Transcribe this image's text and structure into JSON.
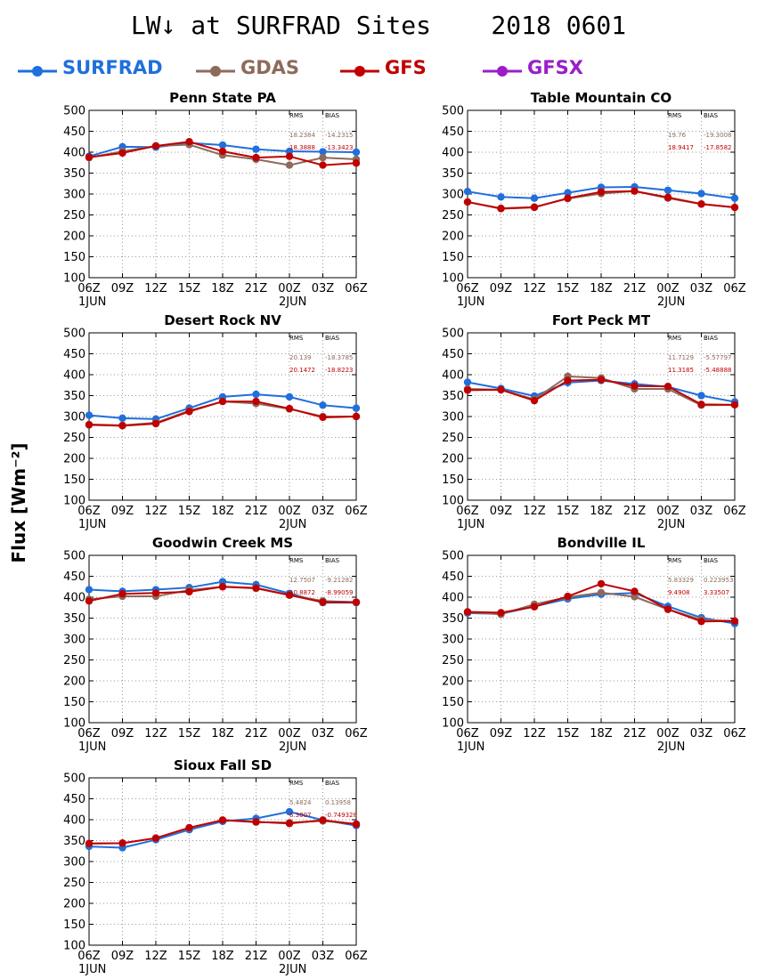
{
  "title": "LW↓ at SURFRAD Sites    2018 0601",
  "ylabel": "Flux [Wm⁻²]",
  "legend": [
    {
      "name": "SURFRAD",
      "color": "#1f6fdc"
    },
    {
      "name": "GDAS",
      "color": "#8c6a5c"
    },
    {
      "name": "GFS",
      "color": "#c00000"
    },
    {
      "name": "GFSX",
      "color": "#9a1ec8"
    }
  ],
  "stats_header": {
    "rms": "RMS",
    "bias": "BIAS"
  },
  "chart_data": [
    {
      "type": "line",
      "title": "Penn State PA",
      "x": [
        "06Z",
        "09Z",
        "12Z",
        "15Z",
        "18Z",
        "21Z",
        "00Z",
        "03Z",
        "06Z"
      ],
      "date_labels": [
        "1JUN",
        "2JUN"
      ],
      "ylim": [
        100,
        500
      ],
      "yticks": [
        100,
        150,
        200,
        250,
        300,
        350,
        400,
        450,
        500
      ],
      "grid": true,
      "series": [
        {
          "name": "SURFRAD",
          "color": "#1f6fdc",
          "values": [
            390,
            413,
            412,
            422,
            417,
            407,
            402,
            401,
            400
          ]
        },
        {
          "name": "GDAS",
          "color": "#8c6a5c",
          "values": [
            387,
            402,
            415,
            418,
            393,
            383,
            369,
            387,
            383
          ]
        },
        {
          "name": "GFS",
          "color": "#c00000",
          "values": [
            388,
            398,
            415,
            425,
            402,
            387,
            390,
            369,
            374
          ]
        }
      ],
      "stats": [
        {
          "model": "GDAS",
          "color": "#8c6a5c",
          "rms": "18.2384",
          "bias": "-14.2315"
        },
        {
          "model": "GFS",
          "color": "#c00000",
          "rms": "18.3888",
          "bias": "-13.3423"
        }
      ]
    },
    {
      "type": "line",
      "title": "Table Mountain CO",
      "x": [
        "06Z",
        "09Z",
        "12Z",
        "15Z",
        "18Z",
        "21Z",
        "00Z",
        "03Z",
        "06Z"
      ],
      "date_labels": [
        "1JUN",
        "2JUN"
      ],
      "ylim": [
        100,
        500
      ],
      "yticks": [
        100,
        150,
        200,
        250,
        300,
        350,
        400,
        450,
        500
      ],
      "grid": true,
      "series": [
        {
          "name": "SURFRAD",
          "color": "#1f6fdc",
          "values": [
            306,
            293,
            290,
            303,
            316,
            317,
            309,
            301,
            290
          ]
        },
        {
          "name": "GDAS",
          "color": "#8c6a5c",
          "values": [
            281,
            266,
            269,
            289,
            301,
            307,
            290,
            276,
            268
          ]
        },
        {
          "name": "GFS",
          "color": "#c00000",
          "values": [
            281,
            265,
            268,
            290,
            305,
            307,
            292,
            276,
            268
          ]
        }
      ],
      "stats": [
        {
          "model": "GDAS",
          "color": "#8c6a5c",
          "rms": "19.76",
          "bias": "-19.3008"
        },
        {
          "model": "GFS",
          "color": "#c00000",
          "rms": "18.9417",
          "bias": "-17.8582"
        }
      ]
    },
    {
      "type": "line",
      "title": "Desert Rock NV",
      "x": [
        "06Z",
        "09Z",
        "12Z",
        "15Z",
        "18Z",
        "21Z",
        "00Z",
        "03Z",
        "06Z"
      ],
      "date_labels": [
        "1JUN",
        "2JUN"
      ],
      "ylim": [
        100,
        500
      ],
      "yticks": [
        100,
        150,
        200,
        250,
        300,
        350,
        400,
        450,
        500
      ],
      "grid": true,
      "series": [
        {
          "name": "SURFRAD",
          "color": "#1f6fdc",
          "values": [
            303,
            296,
            294,
            320,
            347,
            353,
            347,
            327,
            320
          ]
        },
        {
          "name": "GDAS",
          "color": "#8c6a5c",
          "values": [
            281,
            279,
            285,
            314,
            336,
            331,
            318,
            300,
            300
          ]
        },
        {
          "name": "GFS",
          "color": "#c00000",
          "values": [
            280,
            278,
            283,
            312,
            336,
            336,
            319,
            298,
            300
          ]
        }
      ],
      "stats": [
        {
          "model": "GDAS",
          "color": "#8c6a5c",
          "rms": "20.139",
          "bias": "-18.3785"
        },
        {
          "model": "GFS",
          "color": "#c00000",
          "rms": "20.1472",
          "bias": "-18.8223"
        }
      ]
    },
    {
      "type": "line",
      "title": "Fort Peck MT",
      "x": [
        "06Z",
        "09Z",
        "12Z",
        "15Z",
        "18Z",
        "21Z",
        "00Z",
        "03Z",
        "06Z"
      ],
      "date_labels": [
        "1JUN",
        "2JUN"
      ],
      "ylim": [
        100,
        500
      ],
      "yticks": [
        100,
        150,
        200,
        250,
        300,
        350,
        400,
        450,
        500
      ],
      "grid": true,
      "series": [
        {
          "name": "SURFRAD",
          "color": "#1f6fdc",
          "values": [
            382,
            367,
            349,
            381,
            386,
            378,
            371,
            350,
            335
          ]
        },
        {
          "name": "GDAS",
          "color": "#8c6a5c",
          "values": [
            366,
            364,
            341,
            396,
            392,
            366,
            366,
            327,
            328
          ]
        },
        {
          "name": "GFS",
          "color": "#c00000",
          "values": [
            363,
            364,
            338,
            386,
            388,
            373,
            372,
            329,
            328
          ]
        }
      ],
      "stats": [
        {
          "model": "GDAS",
          "color": "#8c6a5c",
          "rms": "11.7129",
          "bias": "-5.57797"
        },
        {
          "model": "GFS",
          "color": "#c00000",
          "rms": "11.3185",
          "bias": "-5.48888"
        }
      ]
    },
    {
      "type": "line",
      "title": "Goodwin Creek MS",
      "x": [
        "06Z",
        "09Z",
        "12Z",
        "15Z",
        "18Z",
        "21Z",
        "00Z",
        "03Z",
        "06Z"
      ],
      "date_labels": [
        "1JUN",
        "2JUN"
      ],
      "ylim": [
        100,
        500
      ],
      "yticks": [
        100,
        150,
        200,
        250,
        300,
        350,
        400,
        450,
        500
      ],
      "grid": true,
      "series": [
        {
          "name": "SURFRAD",
          "color": "#1f6fdc",
          "values": [
            418,
            414,
            418,
            423,
            437,
            430,
            409,
            387,
            387
          ]
        },
        {
          "name": "GDAS",
          "color": "#8c6a5c",
          "values": [
            395,
            402,
            402,
            417,
            425,
            421,
            405,
            391,
            388
          ]
        },
        {
          "name": "GFS",
          "color": "#c00000",
          "values": [
            391,
            408,
            410,
            413,
            425,
            422,
            405,
            388,
            388
          ]
        }
      ],
      "stats": [
        {
          "model": "GDAS",
          "color": "#8c6a5c",
          "rms": "12.7507",
          "bias": "-9.21282"
        },
        {
          "model": "GFS",
          "color": "#c00000",
          "rms": "10.8872",
          "bias": "-8.99059"
        }
      ]
    },
    {
      "type": "line",
      "title": "Bondville IL",
      "x": [
        "06Z",
        "09Z",
        "12Z",
        "15Z",
        "18Z",
        "21Z",
        "00Z",
        "03Z",
        "06Z"
      ],
      "date_labels": [
        "1JUN",
        "2JUN"
      ],
      "ylim": [
        100,
        500
      ],
      "yticks": [
        100,
        150,
        200,
        250,
        300,
        350,
        400,
        450,
        500
      ],
      "grid": true,
      "series": [
        {
          "name": "SURFRAD",
          "color": "#1f6fdc",
          "values": [
            362,
            360,
            378,
            396,
            407,
            410,
            378,
            351,
            337
          ]
        },
        {
          "name": "GDAS",
          "color": "#8c6a5c",
          "values": [
            364,
            359,
            383,
            400,
            411,
            401,
            371,
            346,
            343
          ]
        },
        {
          "name": "GFS",
          "color": "#c00000",
          "values": [
            365,
            363,
            377,
            402,
            432,
            414,
            371,
            342,
            343
          ]
        }
      ],
      "stats": [
        {
          "model": "GDAS",
          "color": "#8c6a5c",
          "rms": "5.83329",
          "bias": "0.223953"
        },
        {
          "model": "GFS",
          "color": "#c00000",
          "rms": "9.4908",
          "bias": "3.33507"
        }
      ]
    },
    {
      "type": "line",
      "title": "Sioux Fall SD",
      "x": [
        "06Z",
        "09Z",
        "12Z",
        "15Z",
        "18Z",
        "21Z",
        "00Z",
        "03Z",
        "06Z"
      ],
      "date_labels": [
        "1JUN",
        "2JUN"
      ],
      "ylim": [
        100,
        500
      ],
      "yticks": [
        100,
        150,
        200,
        250,
        300,
        350,
        400,
        450,
        500
      ],
      "grid": true,
      "series": [
        {
          "name": "SURFRAD",
          "color": "#1f6fdc",
          "values": [
            336,
            333,
            352,
            376,
            396,
            403,
            419,
            399,
            386
          ]
        },
        {
          "name": "GDAS",
          "color": "#8c6a5c",
          "values": [
            343,
            344,
            356,
            380,
            399,
            394,
            393,
            397,
            390
          ]
        },
        {
          "name": "GFS",
          "color": "#c00000",
          "values": [
            343,
            344,
            356,
            381,
            399,
            395,
            391,
            399,
            389
          ]
        }
      ],
      "stats": [
        {
          "model": "GDAS",
          "color": "#8c6a5c",
          "rms": "5.4824",
          "bias": "0.13958"
        },
        {
          "model": "GFS",
          "color": "#c00000",
          "rms": "6.3807",
          "bias": "-0.749328"
        }
      ]
    }
  ]
}
